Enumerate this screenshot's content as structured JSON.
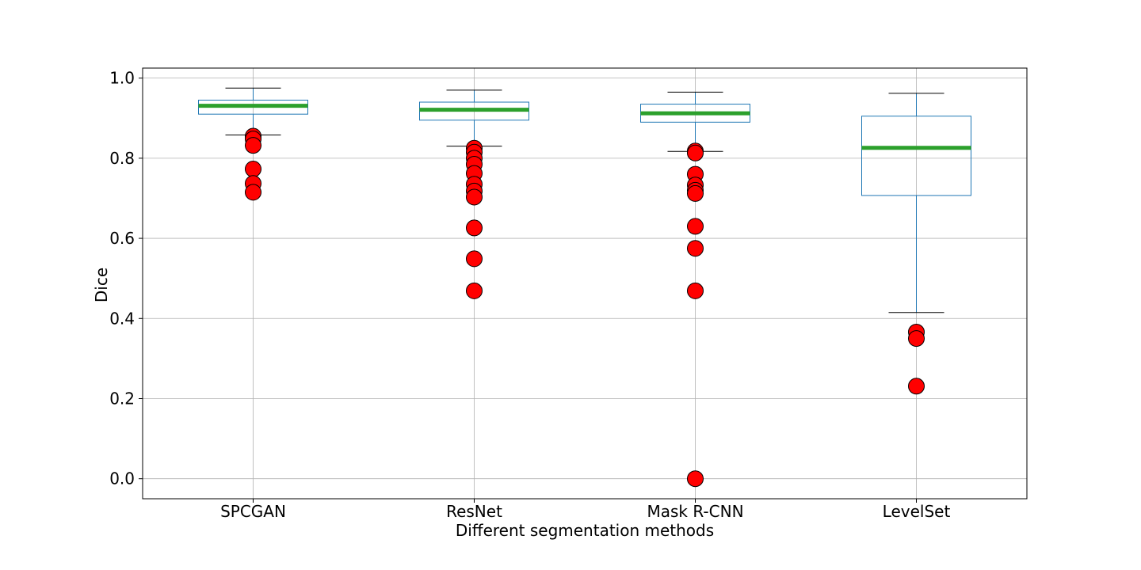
{
  "chart_data": {
    "type": "box",
    "title": "",
    "xlabel": "Different segmentation methods",
    "ylabel": "Dice",
    "ylim": [
      -0.05,
      1.025
    ],
    "yticks": [
      0.0,
      0.2,
      0.4,
      0.6,
      0.8,
      1.0
    ],
    "ytick_labels": [
      "0.0",
      "0.2",
      "0.4",
      "0.6",
      "0.8",
      "1.0"
    ],
    "grid": true,
    "categories": [
      "SPCGAN",
      "ResNet",
      "Mask R-CNN",
      "LevelSet"
    ],
    "boxes": [
      {
        "name": "SPCGAN",
        "whisker_low": 0.858,
        "q1": 0.91,
        "median": 0.931,
        "q3": 0.945,
        "whisker_high": 0.975,
        "outliers": [
          0.855,
          0.848,
          0.832,
          0.773,
          0.737,
          0.715
        ]
      },
      {
        "name": "ResNet",
        "whisker_low": 0.83,
        "q1": 0.895,
        "median": 0.921,
        "q3": 0.94,
        "whisker_high": 0.97,
        "outliers": [
          0.825,
          0.815,
          0.8,
          0.785,
          0.762,
          0.735,
          0.718,
          0.703,
          0.626,
          0.549,
          0.469
        ]
      },
      {
        "name": "Mask R-CNN",
        "whisker_low": 0.817,
        "q1": 0.89,
        "median": 0.912,
        "q3": 0.935,
        "whisker_high": 0.965,
        "outliers": [
          0.818,
          0.813,
          0.76,
          0.733,
          0.72,
          0.712,
          0.63,
          0.575,
          0.469,
          0.0
        ]
      },
      {
        "name": "LevelSet",
        "whisker_low": 0.415,
        "q1": 0.707,
        "median": 0.826,
        "q3": 0.905,
        "whisker_high": 0.962,
        "outliers": [
          0.366,
          0.35,
          0.231
        ]
      }
    ],
    "colors": {
      "box": "#1f77b4",
      "median": "#2ca02c",
      "whisker": "#1f77b4",
      "cap": "#000000",
      "outlier_fill": "#ff0000",
      "outlier_edge": "#000000",
      "grid": "#b0b0b0"
    }
  }
}
